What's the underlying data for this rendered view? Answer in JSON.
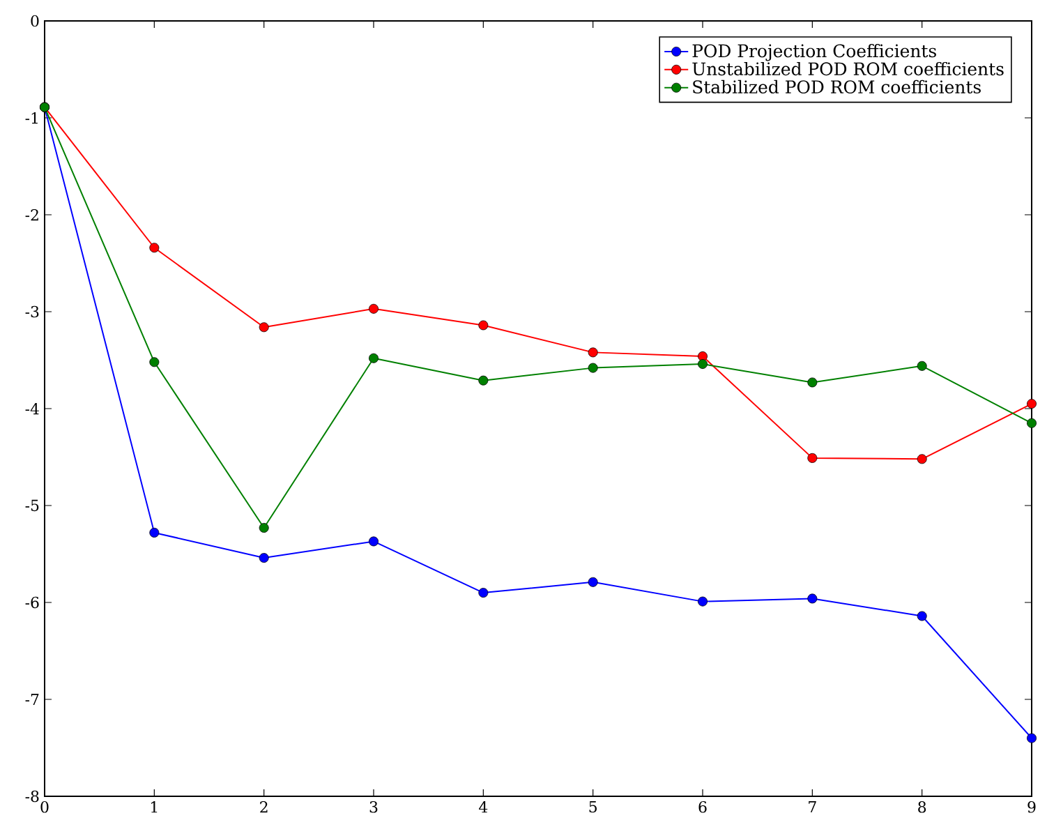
{
  "chart_data": {
    "type": "line",
    "x": [
      0,
      1,
      2,
      3,
      4,
      5,
      6,
      7,
      8,
      9
    ],
    "series": [
      {
        "name": "POD Projection Coefficients",
        "color": "#0000ff",
        "values": [
          -0.89,
          -5.28,
          -5.54,
          -5.37,
          -5.9,
          -5.79,
          -5.99,
          -5.96,
          -6.14,
          -7.4
        ]
      },
      {
        "name": "Unstabilized POD ROM coefficients",
        "color": "#ff0000",
        "values": [
          -0.89,
          -2.34,
          -3.16,
          -2.97,
          -3.14,
          -3.42,
          -3.46,
          -4.51,
          -4.52,
          -3.95
        ]
      },
      {
        "name": "Stabilized POD ROM coefficients",
        "color": "#008000",
        "values": [
          -0.89,
          -3.52,
          -5.23,
          -3.48,
          -3.71,
          -3.58,
          -3.54,
          -3.73,
          -3.56,
          -4.15
        ]
      }
    ],
    "xlim": [
      0,
      9
    ],
    "xticks": [
      0,
      1,
      2,
      3,
      4,
      5,
      6,
      7,
      8,
      9
    ],
    "ylim": [
      -8,
      0
    ],
    "yticks": [
      -8,
      -7,
      -6,
      -5,
      -4,
      -3,
      -2,
      -1,
      0
    ],
    "legend": "top right",
    "marker": "circle",
    "line_style": "solid",
    "grid": false
  }
}
